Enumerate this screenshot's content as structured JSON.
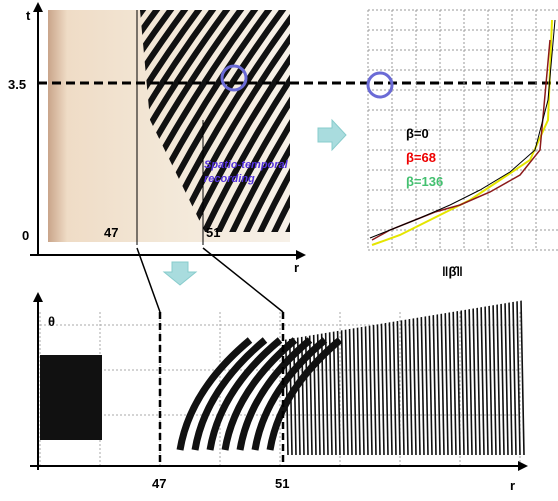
{
  "top_left": {
    "t_axis": "t",
    "t_tick_mark": "3.5",
    "t_zero": "0",
    "r_tick_47": "47",
    "r_tick_51": "51",
    "r_axis": "r",
    "annotation": "Spatio-temporal recording"
  },
  "top_right": {
    "legend": [
      "β=0",
      "β=68",
      "β=136"
    ],
    "x_label": "‖β̂‖"
  },
  "bottom": {
    "theta_axis": "θ",
    "r_tick_47": "47",
    "r_tick_51": "51",
    "r_axis": "r"
  }
}
